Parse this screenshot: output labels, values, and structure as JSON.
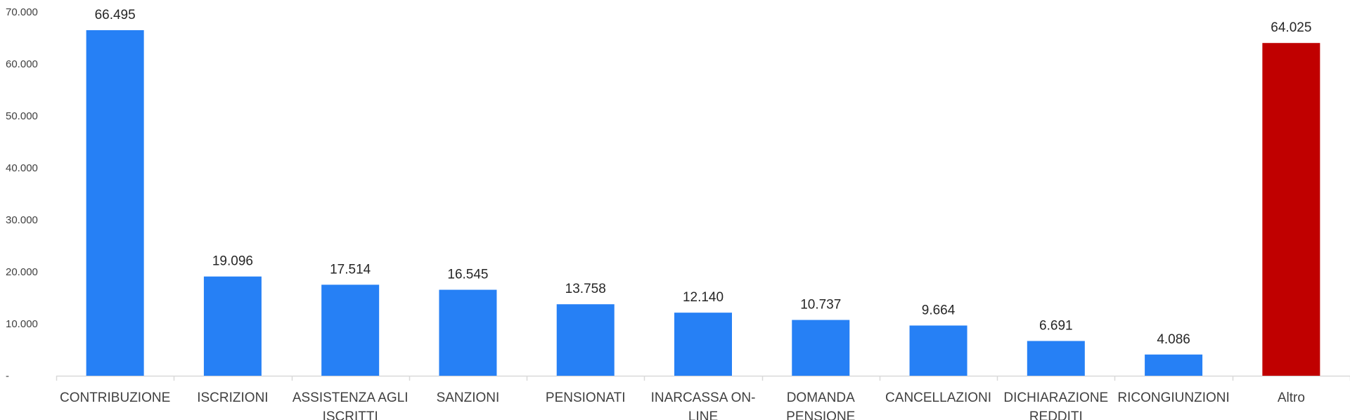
{
  "chart_data": {
    "type": "bar",
    "categories": [
      [
        "CONTRIBUZIONE"
      ],
      [
        "ISCRIZIONI"
      ],
      [
        "ASSISTENZA AGLI",
        "ISCRITTI"
      ],
      [
        "SANZIONI"
      ],
      [
        "PENSIONATI"
      ],
      [
        "INARCASSA ON-",
        "LINE"
      ],
      [
        "DOMANDA",
        "PENSIONE"
      ],
      [
        "CANCELLAZIONI"
      ],
      [
        "DICHIARAZIONE",
        "REDDITI"
      ],
      [
        "RICONGIUNZIONI"
      ],
      [
        "Altro"
      ]
    ],
    "values": [
      66495,
      19096,
      17514,
      16545,
      13758,
      12140,
      10737,
      9664,
      6691,
      4086,
      64025
    ],
    "value_labels": [
      "66.495",
      "19.096",
      "17.514",
      "16.545",
      "13.758",
      "12.140",
      "10.737",
      "9.664",
      "6.691",
      "4.086",
      "64.025"
    ],
    "colors": [
      "#2680f5",
      "#2680f5",
      "#2680f5",
      "#2680f5",
      "#2680f5",
      "#2680f5",
      "#2680f5",
      "#2680f5",
      "#2680f5",
      "#2680f5",
      "#c00000"
    ],
    "yticks": [
      0,
      10000,
      20000,
      30000,
      40000,
      50000,
      60000,
      70000
    ],
    "ytick_labels": [
      "-",
      "10.000",
      "20.000",
      "30.000",
      "40.000",
      "50.000",
      "60.000",
      "70.000"
    ],
    "ylim": [
      0,
      70000
    ],
    "title": "",
    "xlabel": "",
    "ylabel": "",
    "grid": false,
    "legend": "none",
    "axis_color": "#d9d9d9"
  }
}
